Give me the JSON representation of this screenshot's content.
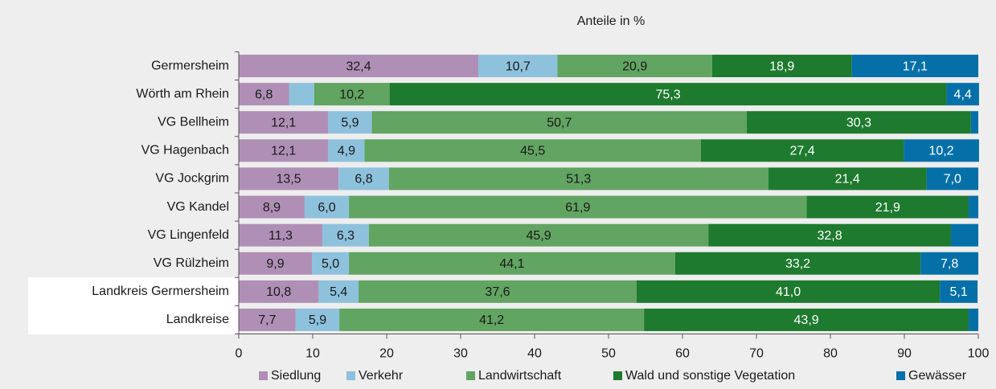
{
  "chart_data": {
    "type": "bar",
    "orientation": "horizontal",
    "stacked": true,
    "title": "Anteile in %",
    "categories": [
      "Germersheim",
      "Wörth am Rhein",
      "VG Bellheim",
      "VG Hagenbach",
      "VG Jockgrim",
      "VG Kandel",
      "VG Lingenfeld",
      "VG Rülzheim",
      "Landkreis Germersheim",
      "Landkreise"
    ],
    "series": [
      {
        "name": "Siedlung",
        "color": "#b08fb6",
        "label_color": "#1a1a1a",
        "values": [
          32.4,
          6.8,
          12.1,
          12.1,
          13.5,
          8.9,
          11.3,
          9.9,
          10.8,
          7.7
        ],
        "value_labels": [
          "32,4",
          "6,8",
          "12,1",
          "12,1",
          "13,5",
          "8,9",
          "11,3",
          "9,9",
          "10,8",
          "7,7"
        ]
      },
      {
        "name": "Verkehr",
        "color": "#8ec1dc",
        "label_color": "#1a1a1a",
        "values": [
          10.7,
          3.4,
          5.9,
          4.9,
          6.8,
          6.0,
          6.3,
          5.0,
          5.4,
          5.9
        ],
        "value_labels": [
          "10,7",
          null,
          "5,9",
          "4,9",
          "6,8",
          "6,0",
          "6,3",
          "5,0",
          "5,4",
          "5,9"
        ]
      },
      {
        "name": "Landwirtschaft",
        "color": "#62a462",
        "label_color": "#1a1a1a",
        "values": [
          20.9,
          10.2,
          50.7,
          45.5,
          51.3,
          61.9,
          45.9,
          44.1,
          37.6,
          41.2
        ],
        "value_labels": [
          "20,9",
          "10,2",
          "50,7",
          "45,5",
          "51,3",
          "61,9",
          "45,9",
          "44,1",
          "37,6",
          "41,2"
        ]
      },
      {
        "name": "Wald und sonstige Vegetation",
        "color": "#1e7a2e",
        "label_color": "#ffffff",
        "values": [
          18.9,
          75.3,
          30.3,
          27.4,
          21.4,
          21.9,
          32.8,
          33.2,
          41.0,
          43.9
        ],
        "value_labels": [
          "18,9",
          "75,3",
          "30,3",
          "27,4",
          "21,4",
          "21,9",
          "32,8",
          "33,2",
          "41,0",
          "43,9"
        ]
      },
      {
        "name": "Gewässer",
        "color": "#0570a8",
        "label_color": "#ffffff",
        "values": [
          17.1,
          4.4,
          1.0,
          10.2,
          7.0,
          1.3,
          3.7,
          7.8,
          5.1,
          1.3
        ],
        "value_labels": [
          "17,1",
          "4,4",
          null,
          "10,2",
          "7,0",
          null,
          null,
          "7,8",
          "5,1",
          null
        ]
      }
    ],
    "xlim": [
      0,
      100
    ],
    "xticks": [
      0,
      10,
      20,
      30,
      40,
      50,
      60,
      70,
      80,
      90,
      100
    ],
    "grid": false
  }
}
